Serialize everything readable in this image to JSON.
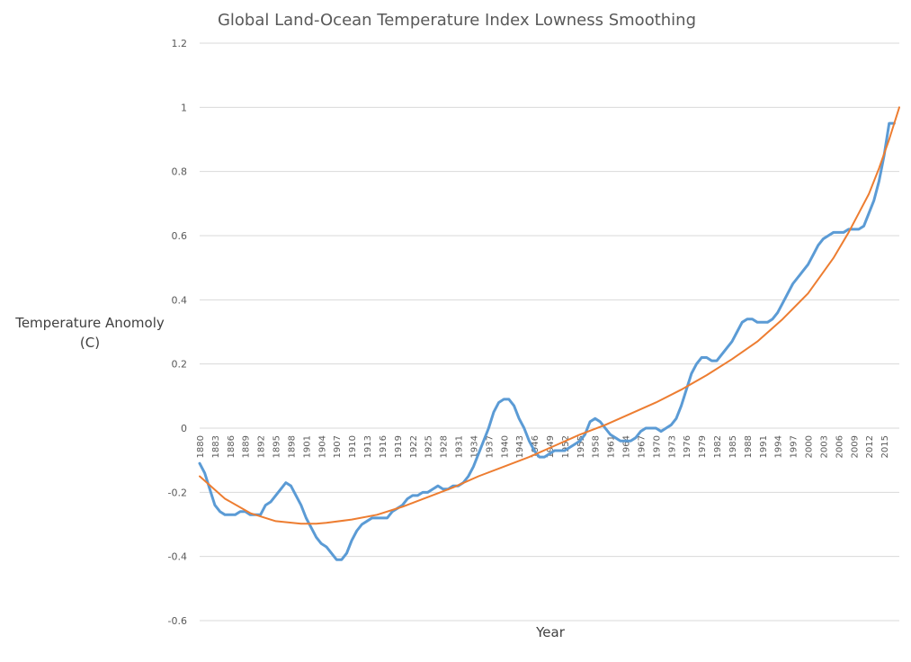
{
  "chart_data": {
    "type": "line",
    "title": "Global Land-Ocean Temperature Index  Lowness Smoothing",
    "xlabel": "Year",
    "ylabel_lines": [
      "Temperature Anomoly",
      "(C)"
    ],
    "ylim": [
      -0.6,
      1.2
    ],
    "yticks": [
      -0.6,
      -0.4,
      -0.2,
      0,
      0.2,
      0.4,
      0.6,
      0.8,
      1,
      1.2
    ],
    "xlim": [
      1880,
      2018
    ],
    "xtick_labels": [
      "1880",
      "1883",
      "1886",
      "1889",
      "1892",
      "1895",
      "1898",
      "1901",
      "1904",
      "1907",
      "1910",
      "1913",
      "1916",
      "1919",
      "1922",
      "1925",
      "1928",
      "1931",
      "1934",
      "1937",
      "1940",
      "1943",
      "1946",
      "1949",
      "1952",
      "1955",
      "1958",
      "1961",
      "1964",
      "1967",
      "1970",
      "1973",
      "1976",
      "1979",
      "1982",
      "1985",
      "1988",
      "1991",
      "1994",
      "1997",
      "2000",
      "2003",
      "2006",
      "2009",
      "2012",
      "2015"
    ],
    "grid": true,
    "legend": "none",
    "series": [
      {
        "color": "#5b9bd5",
        "x": [
          1880,
          1881,
          1882,
          1883,
          1884,
          1885,
          1886,
          1887,
          1888,
          1889,
          1890,
          1891,
          1892,
          1893,
          1894,
          1895,
          1896,
          1897,
          1898,
          1899,
          1900,
          1901,
          1902,
          1903,
          1904,
          1905,
          1906,
          1907,
          1908,
          1909,
          1910,
          1911,
          1912,
          1913,
          1914,
          1915,
          1916,
          1917,
          1918,
          1919,
          1920,
          1921,
          1922,
          1923,
          1924,
          1925,
          1926,
          1927,
          1928,
          1929,
          1930,
          1931,
          1932,
          1933,
          1934,
          1935,
          1936,
          1937,
          1938,
          1939,
          1940,
          1941,
          1942,
          1943,
          1944,
          1945,
          1946,
          1947,
          1948,
          1949,
          1950,
          1951,
          1952,
          1953,
          1954,
          1955,
          1956,
          1957,
          1958,
          1959,
          1960,
          1961,
          1962,
          1963,
          1964,
          1965,
          1966,
          1967,
          1968,
          1969,
          1970,
          1971,
          1972,
          1973,
          1974,
          1975,
          1976,
          1977,
          1978,
          1979,
          1980,
          1981,
          1982,
          1983,
          1984,
          1985,
          1986,
          1987,
          1988,
          1989,
          1990,
          1991,
          1992,
          1993,
          1994,
          1995,
          1996,
          1997,
          1998,
          1999,
          2000,
          2001,
          2002,
          2003,
          2004,
          2005,
          2006,
          2007,
          2008,
          2009,
          2010,
          2011,
          2012,
          2013,
          2014,
          2015,
          2016,
          2017
        ],
        "y": [
          -0.11,
          -0.14,
          -0.19,
          -0.24,
          -0.26,
          -0.27,
          -0.27,
          -0.27,
          -0.26,
          -0.26,
          -0.27,
          -0.27,
          -0.27,
          -0.24,
          -0.23,
          -0.21,
          -0.19,
          -0.17,
          -0.18,
          -0.21,
          -0.24,
          -0.28,
          -0.31,
          -0.34,
          -0.36,
          -0.37,
          -0.39,
          -0.41,
          -0.41,
          -0.39,
          -0.35,
          -0.32,
          -0.3,
          -0.29,
          -0.28,
          -0.28,
          -0.28,
          -0.28,
          -0.26,
          -0.25,
          -0.24,
          -0.22,
          -0.21,
          -0.21,
          -0.2,
          -0.2,
          -0.19,
          -0.18,
          -0.19,
          -0.19,
          -0.18,
          -0.18,
          -0.17,
          -0.15,
          -0.12,
          -0.08,
          -0.04,
          0.0,
          0.05,
          0.08,
          0.09,
          0.09,
          0.07,
          0.03,
          0.0,
          -0.04,
          -0.07,
          -0.09,
          -0.09,
          -0.08,
          -0.07,
          -0.07,
          -0.07,
          -0.06,
          -0.05,
          -0.04,
          -0.02,
          0.02,
          0.03,
          0.02,
          0.0,
          -0.02,
          -0.03,
          -0.04,
          -0.04,
          -0.04,
          -0.03,
          -0.01,
          0.0,
          0.0,
          0.0,
          -0.01,
          0.0,
          0.01,
          0.03,
          0.07,
          0.12,
          0.17,
          0.2,
          0.22,
          0.22,
          0.21,
          0.21,
          0.23,
          0.25,
          0.27,
          0.3,
          0.33,
          0.34,
          0.34,
          0.33,
          0.33,
          0.33,
          0.34,
          0.36,
          0.39,
          0.42,
          0.45,
          0.47,
          0.49,
          0.51,
          0.54,
          0.57,
          0.59,
          0.6,
          0.61,
          0.61,
          0.61,
          0.62,
          0.62,
          0.62,
          0.63,
          0.67,
          0.71,
          0.77,
          0.85,
          0.95,
          0.95
        ]
      },
      {
        "color": "#ed7d31",
        "x": [
          1880,
          1885,
          1890,
          1895,
          1900,
          1903,
          1905,
          1910,
          1915,
          1920,
          1925,
          1930,
          1935,
          1940,
          1945,
          1950,
          1955,
          1960,
          1965,
          1970,
          1975,
          1980,
          1985,
          1990,
          1995,
          2000,
          2005,
          2008,
          2010,
          2012,
          2014,
          2016,
          2018
        ],
        "y": [
          -0.15,
          -0.22,
          -0.265,
          -0.29,
          -0.298,
          -0.298,
          -0.295,
          -0.285,
          -0.27,
          -0.245,
          -0.215,
          -0.185,
          -0.15,
          -0.12,
          -0.09,
          -0.055,
          -0.02,
          0.01,
          0.045,
          0.08,
          0.12,
          0.165,
          0.215,
          0.27,
          0.34,
          0.42,
          0.53,
          0.61,
          0.67,
          0.73,
          0.81,
          0.9,
          1.0
        ]
      }
    ]
  }
}
